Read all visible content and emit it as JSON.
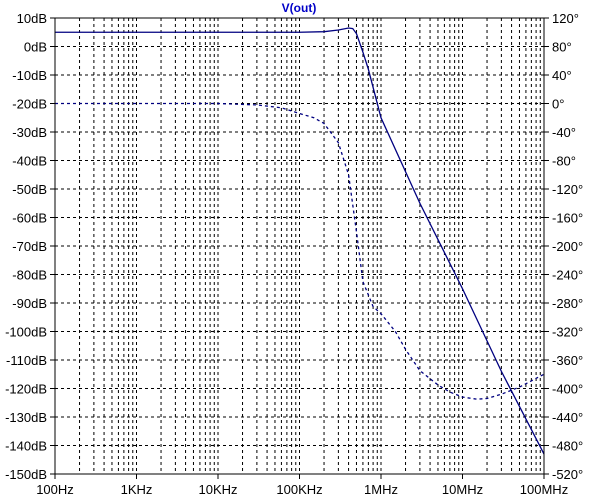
{
  "chart_data": {
    "type": "line",
    "title": "V(out)",
    "x_scale": "log",
    "xlim": [
      100,
      100000000
    ],
    "x_ticks": [
      {
        "value": 100,
        "label": "100Hz"
      },
      {
        "value": 1000,
        "label": "1KHz"
      },
      {
        "value": 10000,
        "label": "10KHz"
      },
      {
        "value": 100000,
        "label": "100KHz"
      },
      {
        "value": 1000000,
        "label": "1MHz"
      },
      {
        "value": 10000000,
        "label": "10MHz"
      },
      {
        "value": 100000000,
        "label": "100MHz"
      }
    ],
    "y_left": {
      "lim": [
        -150,
        10
      ],
      "ticks": [
        {
          "value": 10,
          "label": "10dB"
        },
        {
          "value": 0,
          "label": "0dB"
        },
        {
          "value": -10,
          "label": "-10dB"
        },
        {
          "value": -20,
          "label": "-20dB"
        },
        {
          "value": -30,
          "label": "-30dB"
        },
        {
          "value": -40,
          "label": "-40dB"
        },
        {
          "value": -50,
          "label": "-50dB"
        },
        {
          "value": -60,
          "label": "-60dB"
        },
        {
          "value": -70,
          "label": "-70dB"
        },
        {
          "value": -80,
          "label": "-80dB"
        },
        {
          "value": -90,
          "label": "-90dB"
        },
        {
          "value": -100,
          "label": "-100dB"
        },
        {
          "value": -110,
          "label": "-110dB"
        },
        {
          "value": -120,
          "label": "-120dB"
        },
        {
          "value": -130,
          "label": "-130dB"
        },
        {
          "value": -140,
          "label": "-140dB"
        },
        {
          "value": -150,
          "label": "-150dB"
        }
      ]
    },
    "y_right": {
      "lim": [
        -520,
        120
      ],
      "ticks": [
        {
          "value": 120,
          "label": "120°"
        },
        {
          "value": 80,
          "label": "80°"
        },
        {
          "value": 40,
          "label": "40°"
        },
        {
          "value": 0,
          "label": "0°"
        },
        {
          "value": -40,
          "label": "-40°"
        },
        {
          "value": -80,
          "label": "-80°"
        },
        {
          "value": -120,
          "label": "-120°"
        },
        {
          "value": -160,
          "label": "-160°"
        },
        {
          "value": -200,
          "label": "-200°"
        },
        {
          "value": -240,
          "label": "-240°"
        },
        {
          "value": -280,
          "label": "-280°"
        },
        {
          "value": -320,
          "label": "-320°"
        },
        {
          "value": -360,
          "label": "-360°"
        },
        {
          "value": -400,
          "label": "-400°"
        },
        {
          "value": -440,
          "label": "-440°"
        },
        {
          "value": -480,
          "label": "-480°"
        },
        {
          "value": -520,
          "label": "-520°"
        }
      ]
    },
    "grid": true,
    "series": [
      {
        "axis": "left",
        "style": "solid",
        "color": "#000080",
        "x": [
          100,
          1000,
          10000,
          100000,
          200000,
          300000,
          400000,
          450000,
          500000,
          600000,
          700000,
          1000000,
          3000000,
          10000000,
          30000000,
          100000000
        ],
        "y": [
          5,
          5,
          5,
          5,
          5.2,
          5.8,
          6.5,
          6.3,
          4.5,
          -2,
          -8,
          -25,
          -55,
          -85,
          -114,
          -143
        ]
      },
      {
        "axis": "right",
        "style": "dashed",
        "color": "#000080",
        "x": [
          100,
          1000,
          10000,
          30000,
          60000,
          100000,
          150000,
          200000,
          300000,
          400000,
          500000,
          600000,
          800000,
          1000000,
          1500000,
          2000000,
          3000000,
          5000000,
          7000000,
          10000000,
          15000000,
          20000000,
          30000000,
          50000000,
          100000000
        ],
        "y": [
          0,
          0,
          0,
          -2,
          -6,
          -14,
          -20,
          -28,
          -55,
          -100,
          -180,
          -250,
          -285,
          -295,
          -320,
          -345,
          -375,
          -395,
          -405,
          -412,
          -415,
          -414,
          -408,
          -398,
          -380
        ]
      }
    ]
  }
}
